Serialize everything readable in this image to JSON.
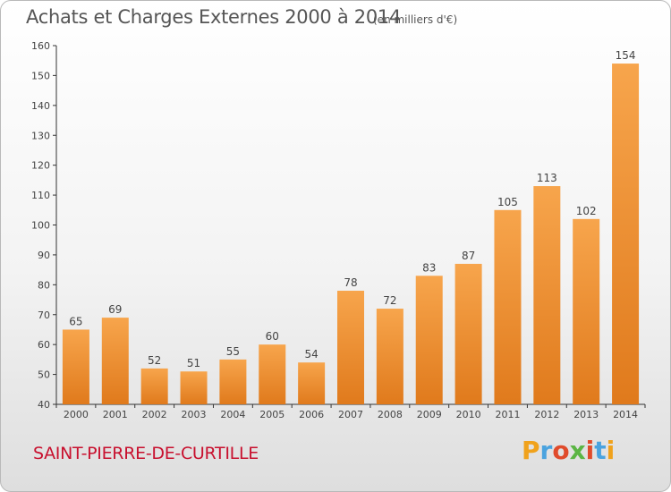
{
  "header": {
    "title": "Achats et Charges Externes 2000 à 2014",
    "unit": "(en milliers d'€)"
  },
  "footer": {
    "commune": "SAINT-PIERRE-DE-CURTILLE",
    "logo_text": "Proxiti"
  },
  "colors": {
    "bar_light": "#f7a54c",
    "bar_dark": "#e07a1c",
    "commune_text": "#c8102e",
    "logo_letters": [
      "#f0a21c",
      "#4aa3df",
      "#e04b2b",
      "#5bb544",
      "#e04b2b",
      "#4aa3df",
      "#f0a21c"
    ]
  },
  "chart_data": {
    "type": "bar",
    "title": "Achats et Charges Externes 2000 à 2014",
    "subtitle": "(en milliers d'€)",
    "categories": [
      "2000",
      "2001",
      "2002",
      "2003",
      "2004",
      "2005",
      "2006",
      "2007",
      "2008",
      "2009",
      "2010",
      "2011",
      "2012",
      "2013",
      "2014"
    ],
    "values": [
      65,
      69,
      52,
      51,
      55,
      60,
      54,
      78,
      72,
      83,
      87,
      105,
      113,
      102,
      154
    ],
    "ylim": [
      40,
      160
    ],
    "yticks": [
      40,
      50,
      60,
      70,
      80,
      90,
      100,
      110,
      120,
      130,
      140,
      150,
      160
    ],
    "grid": false,
    "xlabel": "",
    "ylabel": ""
  }
}
